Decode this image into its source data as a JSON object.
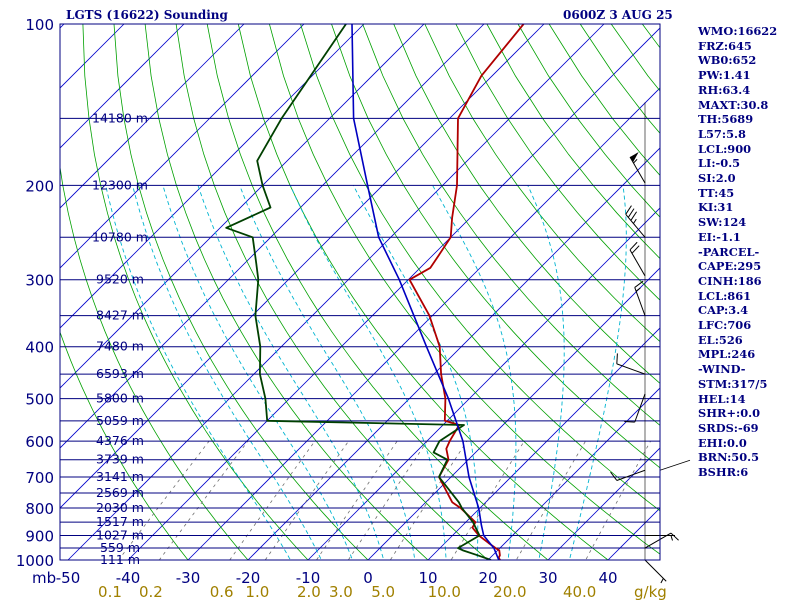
{
  "header": {
    "station": "LGTS (16622) Sounding",
    "time": "0600Z  3 AUG 25"
  },
  "info": [
    "WMO:16622",
    "FRZ:645",
    "WB0:652",
    "PW:1.41",
    "RH:63.4",
    "MAXT:30.8",
    "TH:5689",
    "L57:5.8",
    "LCL:900",
    "LI:-0.5",
    "SI:2.0",
    "TT:45",
    "KI:31",
    "SW:124",
    "EI:-1.1",
    "-PARCEL-",
    "CAPE:295",
    "CINH:186",
    "LCL:861",
    "CAP:3.4",
    "LFC:706",
    "EL:526",
    "MPL:246",
    "-WIND-",
    "STM:317/5",
    "HEL:14",
    "SHR+:0.0",
    "SRDS:-69",
    "EHI:0.0",
    "BRN:50.5",
    "BSHR:6"
  ],
  "colors": {
    "isobar": "#000080",
    "isotherm": "#0000cc",
    "dry_adiabat": "#00a000",
    "moist_adiabat": "#00b4d0",
    "mixing_ratio": "#707070",
    "temperature": "#b00000",
    "dewpoint": "#004000",
    "parcel": "#0000c0",
    "wind": "#000000",
    "mixing_ratio_label": "#a08000"
  },
  "chart_data": {
    "type": "line",
    "diagram": "skew-T log-P",
    "pressure_unit_label": "mb",
    "mixing_ratio_unit_label": "g/kg",
    "pressure_levels": [
      100,
      200,
      300,
      400,
      500,
      600,
      700,
      800,
      900,
      1000
    ],
    "temperature_ticks": [
      -50,
      -40,
      -30,
      -20,
      -10,
      0,
      10,
      20,
      30,
      40
    ],
    "temperature_tick_labels": [
      "-50",
      "-40",
      "-30",
      "-20",
      "-10",
      "0",
      "10",
      "20",
      "30",
      "40"
    ],
    "mixing_ratio_labels": [
      {
        "label": "0.1",
        "value": 0.1
      },
      {
        "label": "0.2",
        "value": 0.2
      },
      {
        "label": "0.6",
        "value": 0.6
      },
      {
        "label": "1.0",
        "value": 1.0
      },
      {
        "label": "2.0",
        "value": 2.0
      },
      {
        "label": "3.0",
        "value": 3.0
      },
      {
        "label": "5.0",
        "value": 5.0
      },
      {
        "label": "10.0",
        "value": 10.0
      },
      {
        "label": "20.0",
        "value": 20.0
      },
      {
        "label": "40.0",
        "value": 40.0
      }
    ],
    "height_labels": [
      {
        "p": 150,
        "label": "14180 m"
      },
      {
        "p": 200,
        "label": "12300 m"
      },
      {
        "p": 250,
        "label": "10780 m"
      },
      {
        "p": 300,
        "label": "9520 m"
      },
      {
        "p": 350,
        "label": "8427 m"
      },
      {
        "p": 400,
        "label": "7480 m"
      },
      {
        "p": 450,
        "label": "6593 m"
      },
      {
        "p": 500,
        "label": "5800 m"
      },
      {
        "p": 550,
        "label": "5059 m"
      },
      {
        "p": 600,
        "label": "4376 m"
      },
      {
        "p": 650,
        "label": "3739 m"
      },
      {
        "p": 700,
        "label": "3141 m"
      },
      {
        "p": 750,
        "label": "2569 m"
      },
      {
        "p": 800,
        "label": "2030 m"
      },
      {
        "p": 850,
        "label": "1517 m"
      },
      {
        "p": 900,
        "label": "1027 m"
      },
      {
        "p": 950,
        "label": "559 m"
      },
      {
        "p": 1000,
        "label": "111 m"
      }
    ],
    "series": [
      {
        "key": "temperature",
        "p": [
          1010,
          1000,
          990,
          980,
          960,
          950,
          930,
          900,
          870,
          850,
          800,
          780,
          700,
          650,
          620,
          600,
          560,
          550,
          500,
          450,
          400,
          350,
          300,
          285,
          270,
          250,
          230,
          200,
          150,
          125,
          100
        ],
        "t": [
          23.2,
          22,
          21.4,
          21.2,
          20.3,
          19.3,
          17.3,
          14.4,
          12,
          11.6,
          6.8,
          4.4,
          -2,
          -3.3,
          -5.5,
          -6.2,
          -7.3,
          -10.4,
          -14,
          -18.8,
          -23.6,
          -30.5,
          -39.8,
          -38.3,
          -39,
          -40,
          -43,
          -47.6,
          -58.6,
          -61.8,
          -63.4
        ]
      },
      {
        "key": "dewpoint",
        "p": [
          1000,
          980,
          960,
          950,
          900,
          850,
          800,
          780,
          700,
          650,
          630,
          600,
          560,
          550,
          500,
          450,
          400,
          350,
          300,
          280,
          250,
          240,
          220,
          200,
          180,
          150,
          100
        ],
        "t": [
          20.5,
          17.5,
          14.3,
          13,
          14.5,
          11.2,
          7,
          5.5,
          -2,
          -3.5,
          -7,
          -7.9,
          -6.5,
          -40,
          -44,
          -49,
          -53.5,
          -59.5,
          -65,
          -68,
          -73,
          -79,
          -75,
          -80,
          -85,
          -88,
          -93
        ]
      },
      {
        "key": "parcel",
        "p": [
          1010,
          1000,
          950,
          900,
          861,
          800,
          700,
          600,
          500,
          400,
          300,
          250,
          200,
          150,
          100
        ],
        "t": [
          23,
          21.8,
          19,
          15.2,
          13.1,
          9.8,
          3,
          -4,
          -13.5,
          -25.8,
          -41.5,
          -52,
          -62.5,
          -76,
          -92
        ]
      }
    ],
    "winds": [
      {
        "p": 1000,
        "dir": 135,
        "spd": 5
      },
      {
        "p": 950,
        "dir": 60,
        "spd": 10
      },
      {
        "p": 900,
        "dir": 90,
        "spd": 5
      },
      {
        "p": 680,
        "dir": 250,
        "spd": 10
      },
      {
        "p": 490,
        "dir": 200,
        "spd": 10
      },
      {
        "p": 450,
        "dir": 290,
        "spd": 10
      },
      {
        "p": 350,
        "dir": 340,
        "spd": 15
      },
      {
        "p": 295,
        "dir": 330,
        "spd": 20
      },
      {
        "p": 250,
        "dir": 320,
        "spd": 35
      },
      {
        "p": 198,
        "dir": 330,
        "spd": 55
      }
    ]
  }
}
